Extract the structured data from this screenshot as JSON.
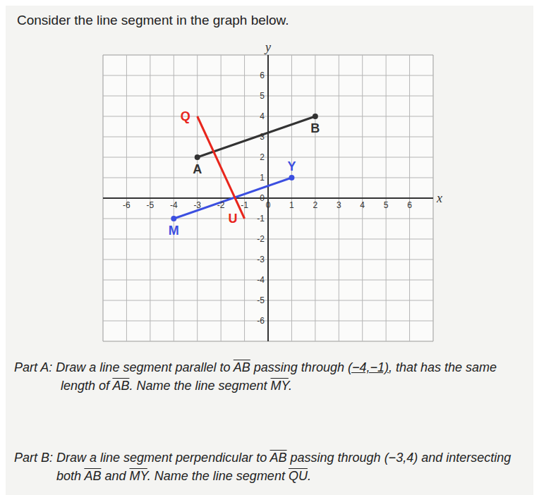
{
  "title": "Consider the line segment in the graph below.",
  "chart_data": {
    "type": "line",
    "x_label": "x",
    "y_label": "y",
    "xlim": [
      -7,
      7
    ],
    "ylim": [
      -7,
      7
    ],
    "xticks": [
      -6,
      -5,
      -4,
      -3,
      -2,
      -1,
      0,
      1,
      2,
      3,
      4,
      5,
      6
    ],
    "yticks": [
      -6,
      -5,
      -4,
      -3,
      -2,
      -1,
      0,
      1,
      2,
      3,
      4,
      5,
      6
    ],
    "grid": true,
    "series": [
      {
        "color": "#333333",
        "marker": "circle",
        "x": [
          -3,
          2
        ],
        "values": [
          2,
          4
        ],
        "point_labels": [
          "A",
          "B"
        ]
      },
      {
        "color": "#3b4fe0",
        "marker": "circle",
        "x": [
          -4,
          1
        ],
        "values": [
          -1,
          1
        ],
        "point_labels": [
          "M",
          "Y"
        ]
      },
      {
        "color": "#e8261c",
        "marker": "none",
        "x": [
          -3,
          -1
        ],
        "values": [
          4,
          -1
        ],
        "point_labels": [
          "Q",
          "U"
        ]
      }
    ]
  },
  "part_a": [
    {
      "text": "Part A: Draw a line segment parallel to "
    },
    {
      "text": "AB",
      "overline": true
    },
    {
      "text": " passing through "
    },
    {
      "text": "(−4,−1)",
      "underline": true
    },
    {
      "text": ", that has the same length of "
    },
    {
      "text": "AB",
      "overline": true
    },
    {
      "text": ". Name the line segment "
    },
    {
      "text": "MY",
      "overline": true
    },
    {
      "text": "."
    }
  ],
  "part_b": [
    {
      "text": "Part B: Draw a line segment perpendicular to "
    },
    {
      "text": "AB",
      "overline": true
    },
    {
      "text": " passing through (−3,4) and intersecting both "
    },
    {
      "text": "AB",
      "overline": true
    },
    {
      "text": " and "
    },
    {
      "text": "MY",
      "overline": true
    },
    {
      "text": ". Name the line segment "
    },
    {
      "text": "QU",
      "overline": true
    },
    {
      "text": "."
    }
  ]
}
